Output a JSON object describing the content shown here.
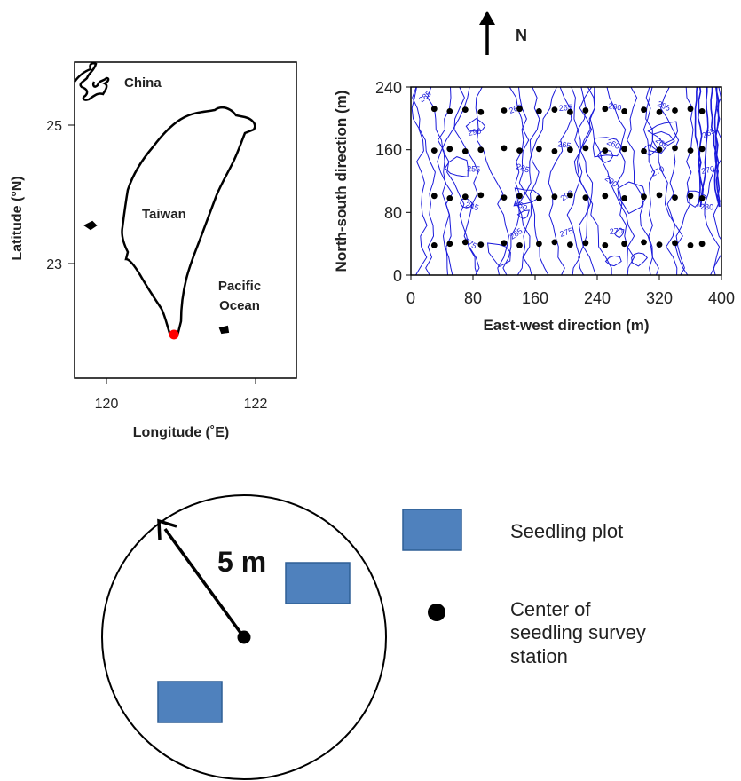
{
  "map": {
    "label_china": "China",
    "label_taiwan": "Taiwan",
    "label_ocean_1": "Pacific",
    "label_ocean_2": "Ocean",
    "y_axis_title": "Latitude (°N)",
    "x_axis_title": "Longitude (˚E)",
    "y_ticks": [
      "25",
      "23"
    ],
    "x_ticks": [
      "120",
      "122"
    ],
    "site_color": "#ff0000"
  },
  "north_arrow": {
    "label": "N"
  },
  "contour": {
    "x_axis_title": "East-west direction (m)",
    "y_axis_title": "North-south direction (m)",
    "x_ticks": [
      "0",
      "80",
      "160",
      "240",
      "320",
      "400"
    ],
    "y_ticks": [
      "0",
      "80",
      "160",
      "240"
    ],
    "contour_color": "#1a1adb",
    "contour_labels": [
      "285",
      "290",
      "285",
      "290",
      "270",
      "285",
      "265",
      "255",
      "250",
      "275",
      "260",
      "265",
      "270",
      "245",
      "285",
      "265",
      "260",
      "270",
      "280",
      "275",
      "260",
      "265",
      "290"
    ],
    "stations": {
      "xlim": [
        0,
        400
      ],
      "ylim": [
        0,
        240
      ],
      "x": [
        30,
        50,
        70,
        90,
        120,
        140,
        165,
        185,
        205,
        225,
        250,
        275,
        300,
        320,
        340,
        360,
        375
      ],
      "rows_y": [
        40,
        100,
        160,
        210
      ]
    }
  },
  "diagram": {
    "radius_label": "5 m",
    "legend_plot": "Seedling plot",
    "legend_center_1": "Center of",
    "legend_center_2": "seedling survey",
    "legend_center_3": "station",
    "plot_color": "#4f81bd",
    "plot_border": "#2f5f95"
  }
}
